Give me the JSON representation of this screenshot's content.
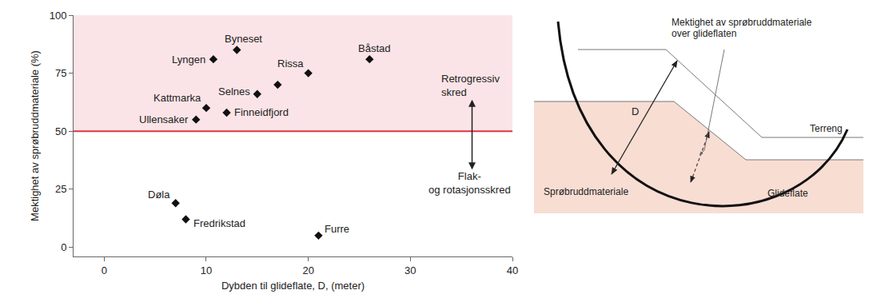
{
  "chart_data": {
    "type": "scatter",
    "x_label": "Dybden til glideflate, D, (meter)",
    "y_label": "Mektighet av sprøbruddmateriale (%)",
    "labels": [
      "Lyngen",
      "Byneset",
      "Båstad",
      "Rissa",
      null,
      "Selnes",
      "Kattmarka",
      "Finneidfjord",
      "Ullensaker",
      "Døla",
      "Fredrikstad",
      "Furre"
    ],
    "x": [
      10.7,
      13,
      26,
      20,
      17,
      15,
      10,
      12,
      9,
      7,
      8,
      21
    ],
    "values": [
      81,
      85,
      81,
      75,
      70,
      66,
      60,
      58,
      55,
      19,
      12,
      5
    ],
    "marker": "diamond",
    "color": "#111111",
    "xlim": [
      -3,
      40
    ],
    "xticks": [
      0,
      10,
      20,
      30,
      40
    ],
    "ylim": [
      -4,
      100
    ],
    "yticks": [
      0,
      25,
      50,
      75,
      100
    ],
    "grid": false,
    "threshold": 50,
    "annotations": [
      {
        "text": [
          "Retrogressiv",
          "skred"
        ]
      },
      {
        "text": [
          "Flak-",
          "og rotasjonsskred"
        ]
      }
    ]
  },
  "diagram": {
    "thickness_label": [
      "Mektighet av sprøbruddmateriale",
      "over glideflaten"
    ],
    "depth_label": "D",
    "terrain_label": "Terreng",
    "material_label": "Sprøbruddmateriale",
    "slip_surface_label": "Glideflate"
  }
}
